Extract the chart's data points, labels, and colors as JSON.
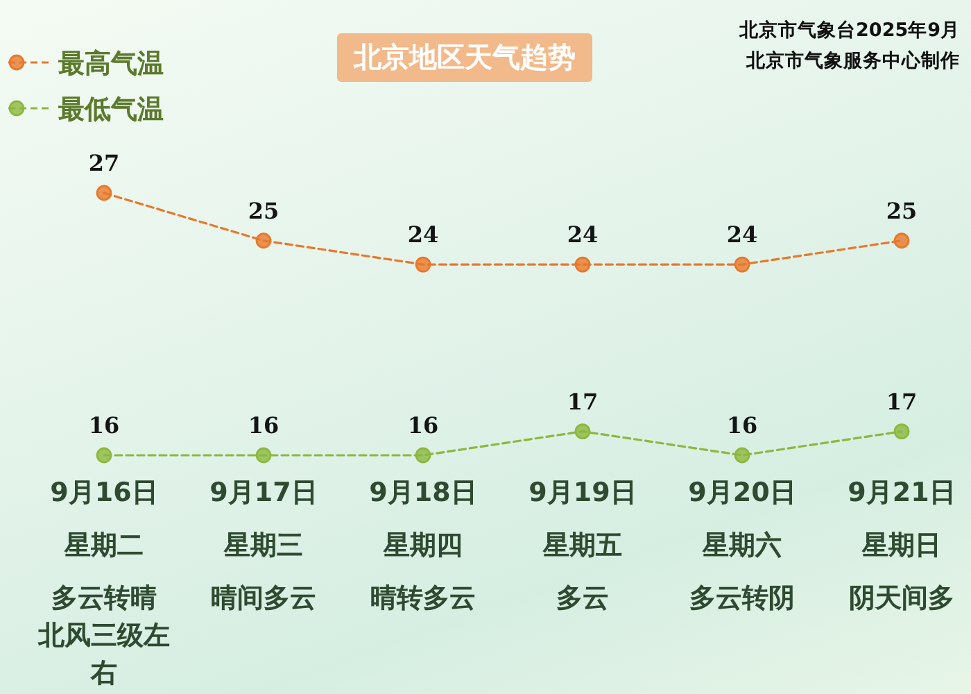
{
  "chart_data": {
    "type": "line",
    "title": "北京地区天气趋势",
    "annotations": [
      "北京市气象台2025年9月",
      "北京市气象服务中心制作",
      "星期二",
      "星期三",
      "星期四",
      "星期五",
      "星期六",
      "星期日",
      "多云转晴",
      "晴间多云",
      "晴转多云",
      "多云",
      "多云转阴",
      "阴天间多",
      "北风三级左右"
    ],
    "categories": [
      "9月16日",
      "9月17日",
      "9月18日",
      "9月19日",
      "9月20日",
      "9月21日"
    ],
    "series": [
      {
        "name": "最高气温",
        "color": "#e8782a",
        "values": [
          27,
          25,
          24,
          24,
          24,
          25
        ]
      },
      {
        "name": "最低气温",
        "color": "#8cb83e",
        "values": [
          16,
          16,
          16,
          17,
          16,
          17
        ]
      }
    ],
    "data_labels": true,
    "legend": "top left",
    "marker": "circle",
    "line_style": "dashed"
  }
}
